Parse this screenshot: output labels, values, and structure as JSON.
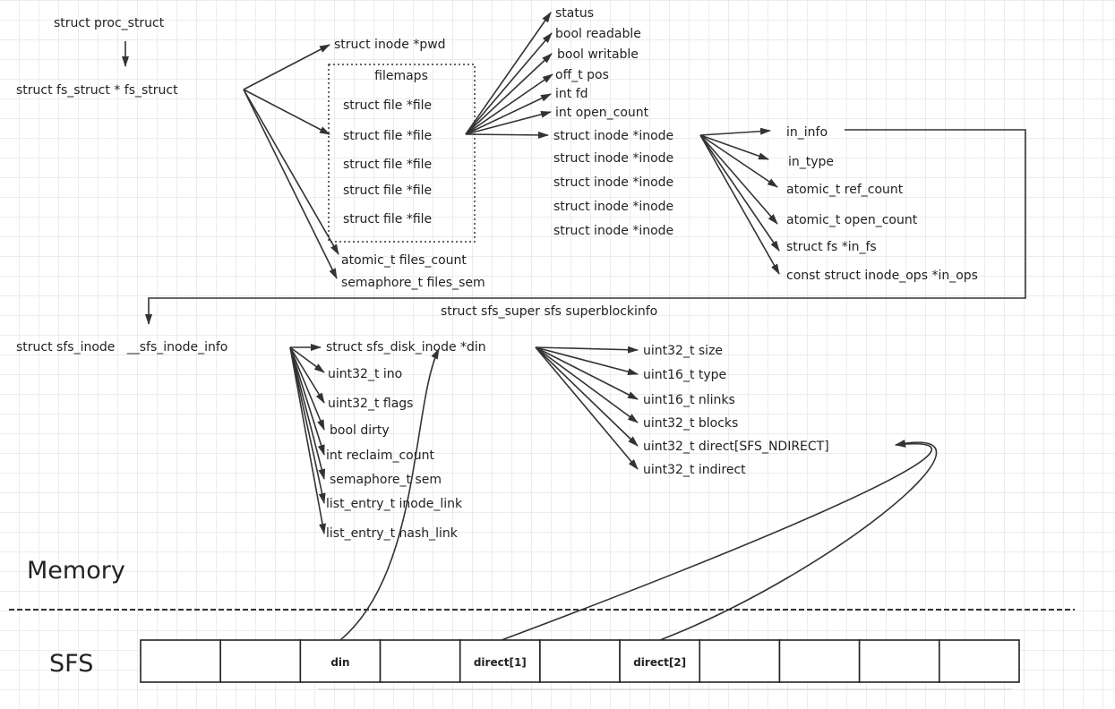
{
  "colors": {
    "line": "#333333",
    "grid": "#ececec",
    "text": "#222222"
  },
  "proc": "struct proc_struct",
  "fs_struct": "struct fs_struct * fs_struct",
  "pwd": "struct inode *pwd",
  "filemaps": {
    "title": "filemaps",
    "files": [
      "struct file *file",
      "struct file *file",
      "struct file *file",
      "struct file *file",
      "struct file *file"
    ]
  },
  "files_count": "atomic_t files_count",
  "files_sem": "semaphore_t files_sem",
  "file_fields": [
    "status",
    "bool readable",
    "bool writable",
    "off_t pos",
    "int fd",
    "int open_count"
  ],
  "inodes": [
    "struct inode *inode",
    "struct inode *inode",
    "struct inode *inode",
    "struct inode *inode",
    "struct inode *inode"
  ],
  "inode_fields": [
    "in_info",
    "in_type",
    "atomic_t ref_count",
    "atomic_t open_count",
    "struct fs *in_fs",
    "const struct inode_ops *in_ops"
  ],
  "superblock": "struct sfs_super sfs superblockinfo",
  "sfs_inode": "struct sfs_inode   __sfs_inode_info",
  "din": "struct sfs_disk_inode *din",
  "sfs_inode_fields": [
    "uint32_t ino",
    "uint32_t flags",
    "bool dirty",
    "int reclaim_count",
    "semaphore_t sem",
    "list_entry_t inode_link",
    "list_entry_t hash_link"
  ],
  "disk_inode_fields": [
    "uint32_t size",
    "uint16_t type",
    "uint16_t nlinks",
    "uint32_t blocks",
    "uint32_t direct[SFS_NDIRECT]",
    "uint32_t indirect"
  ],
  "memory_label": "Memory",
  "sfs_label": "SFS",
  "blocks": [
    "",
    "",
    "din",
    "",
    "direct[1]",
    "",
    "direct[2]",
    "",
    "",
    "",
    ""
  ]
}
